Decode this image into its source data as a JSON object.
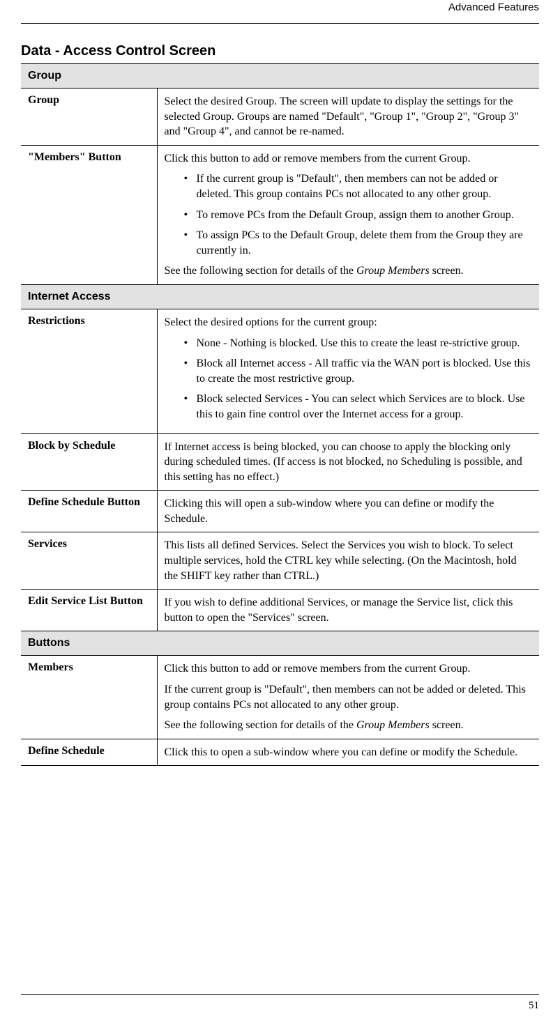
{
  "header": {
    "label": "Advanced Features"
  },
  "title": "Data - Access Control Screen",
  "sections": [
    {
      "header": "Group",
      "rows": [
        {
          "label": "Group",
          "desc_html": "Select the desired Group. The screen will update to display the settings for the selected Group. Groups are named \"Default\", \"Group 1\", \"Group 2\", \"Group 3\" and \"Group 4\", and cannot be re-named."
        },
        {
          "label": "\"Members\" Button",
          "desc_intro": "Click this button to add or remove members from the current Group.",
          "bullets": [
            "If the current group is \"Default\", then members can not be added or deleted. This group contains PCs not allocated to any other group.",
            "To remove PCs from the Default Group, assign them to another Group.",
            "To assign PCs to the Default Group, delete them from the Group they are currently in."
          ],
          "desc_outro_prefix": "See the following section for details of the ",
          "desc_outro_italic": "Group Members",
          "desc_outro_suffix": " screen."
        }
      ]
    },
    {
      "header": "Internet Access",
      "rows": [
        {
          "label": "Restrictions",
          "desc_intro": "Select the desired options for the current group:",
          "bullets": [
            "None - Nothing is blocked. Use this to create the least re-strictive group.",
            "Block all Internet access - All traffic via the WAN port is blocked. Use this to create the most restrictive group.",
            "Block selected Services - You can select which Services are to block. Use this to gain fine control over the Internet access for a group."
          ]
        },
        {
          "label": "Block by Schedule",
          "desc_html": "If Internet access is being blocked, you can choose to apply the blocking only during scheduled times. (If access is not blocked, no Scheduling is possible, and this setting has no effect.)"
        },
        {
          "label": "Define Schedule Button",
          "desc_html": "Clicking this will open a sub-window where you can define or modify the Schedule."
        },
        {
          "label": "Services",
          "desc_html": "This lists all defined Services. Select the Services you wish to block. To select multiple services, hold the CTRL key while selecting. (On the Macintosh, hold the SHIFT key rather than CTRL.)"
        },
        {
          "label": "Edit Service List Button",
          "desc_html": "If you wish to define additional Services, or manage the Service list, click this button to open the \"Services\" screen."
        }
      ]
    },
    {
      "header": "Buttons",
      "rows": [
        {
          "label": "Members",
          "paragraphs": [
            "Click this button to add or remove members from the current Group.",
            "If the current group is \"Default\", then members can not be added or deleted. This group contains PCs not allocated to any other group."
          ],
          "desc_outro_prefix": "See the following section for details of the ",
          "desc_outro_italic": "Group Members",
          "desc_outro_suffix": " screen."
        },
        {
          "label": "Define Schedule",
          "desc_html": "Click this to open a sub-window where you can define or modify the Schedule."
        }
      ]
    }
  ],
  "page_number": "51"
}
